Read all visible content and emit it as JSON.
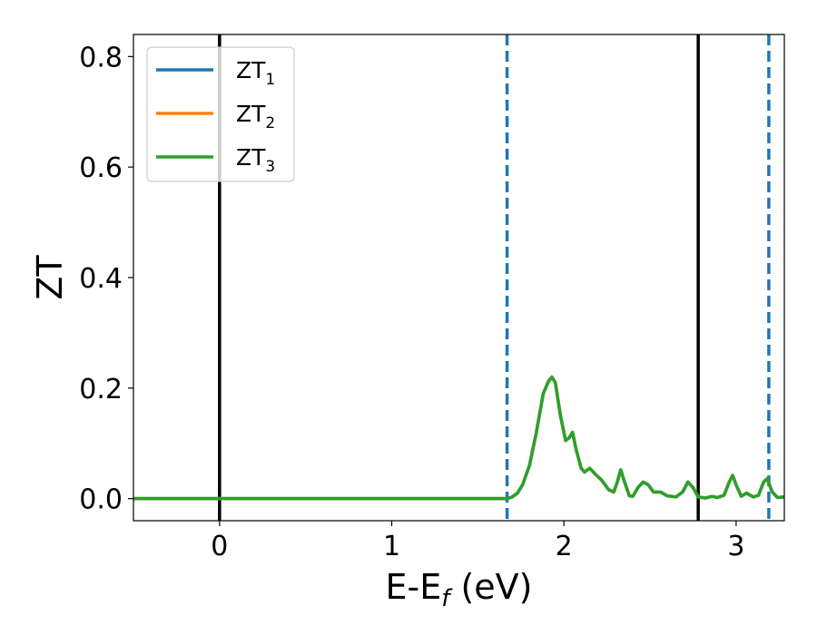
{
  "chart_data": {
    "type": "line",
    "xlabel": {
      "main": "E-E",
      "sub": "f",
      "suffix": " (eV)"
    },
    "ylabel": "ZT",
    "xlim": [
      -0.5,
      3.28
    ],
    "ylim": [
      -0.04,
      0.84
    ],
    "xticks": [
      0,
      1,
      2,
      3
    ],
    "xtick_labels": [
      "0",
      "1",
      "2",
      "3"
    ],
    "yticks": [
      0.0,
      0.2,
      0.4,
      0.6,
      0.8
    ],
    "ytick_labels": [
      "0.0",
      "0.2",
      "0.4",
      "0.6",
      "0.8"
    ],
    "grid": false,
    "legend": {
      "placement": "top-left",
      "entries": [
        {
          "main": "ZT",
          "sub": "1",
          "color": "#1f77b4"
        },
        {
          "main": "ZT",
          "sub": "2",
          "color": "#ff7f0e"
        },
        {
          "main": "ZT",
          "sub": "3",
          "color": "#2ca02c"
        }
      ]
    },
    "vlines": [
      {
        "x": 0.0,
        "style": "solid",
        "color": "#000000"
      },
      {
        "x": 2.78,
        "style": "solid",
        "color": "#000000"
      },
      {
        "x": 1.67,
        "style": "dashed",
        "color": "#1f77b4"
      },
      {
        "x": 3.19,
        "style": "dashed",
        "color": "#1f77b4"
      }
    ],
    "series": [
      {
        "name": "ZT1",
        "color": "#1f77b4",
        "points": [
          [
            -0.5,
            0
          ],
          [
            0.0,
            0
          ],
          [
            0.5,
            0
          ],
          [
            1.0,
            0
          ],
          [
            1.5,
            0
          ],
          [
            1.62,
            0
          ],
          [
            1.67,
            0
          ],
          [
            1.7,
            0.003
          ],
          [
            1.73,
            0.01
          ],
          [
            1.76,
            0.025
          ],
          [
            1.8,
            0.06
          ],
          [
            1.84,
            0.12
          ],
          [
            1.88,
            0.19
          ],
          [
            1.91,
            0.212
          ],
          [
            1.93,
            0.22
          ],
          [
            1.95,
            0.21
          ],
          [
            1.98,
            0.15
          ],
          [
            2.01,
            0.105
          ],
          [
            2.03,
            0.11
          ],
          [
            2.05,
            0.12
          ],
          [
            2.07,
            0.09
          ],
          [
            2.1,
            0.055
          ],
          [
            2.12,
            0.048
          ],
          [
            2.15,
            0.055
          ],
          [
            2.18,
            0.045
          ],
          [
            2.22,
            0.033
          ],
          [
            2.26,
            0.016
          ],
          [
            2.29,
            0.012
          ],
          [
            2.31,
            0.03
          ],
          [
            2.33,
            0.052
          ],
          [
            2.35,
            0.032
          ],
          [
            2.38,
            0.005
          ],
          [
            2.4,
            0.004
          ],
          [
            2.43,
            0.02
          ],
          [
            2.46,
            0.03
          ],
          [
            2.49,
            0.025
          ],
          [
            2.52,
            0.012
          ],
          [
            2.56,
            0.012
          ],
          [
            2.6,
            0.005
          ],
          [
            2.65,
            0.003
          ],
          [
            2.69,
            0.012
          ],
          [
            2.72,
            0.03
          ],
          [
            2.75,
            0.02
          ],
          [
            2.78,
            0.003
          ],
          [
            2.82,
            0.001
          ],
          [
            2.86,
            0.004
          ],
          [
            2.89,
            0.002
          ],
          [
            2.93,
            0.006
          ],
          [
            2.96,
            0.03
          ],
          [
            2.98,
            0.042
          ],
          [
            3.0,
            0.025
          ],
          [
            3.03,
            0.004
          ],
          [
            3.06,
            0.01
          ],
          [
            3.1,
            0.003
          ],
          [
            3.13,
            0.006
          ],
          [
            3.16,
            0.03
          ],
          [
            3.18,
            0.036
          ],
          [
            3.21,
            0.012
          ],
          [
            3.24,
            0.002
          ],
          [
            3.28,
            0.003
          ]
        ]
      },
      {
        "name": "ZT2",
        "color": "#ff7f0e",
        "points": [
          [
            -0.5,
            0
          ],
          [
            0.0,
            0
          ],
          [
            0.5,
            0
          ],
          [
            1.0,
            0
          ],
          [
            1.5,
            0
          ],
          [
            1.62,
            0
          ],
          [
            1.67,
            0
          ],
          [
            1.7,
            0.003
          ],
          [
            1.73,
            0.01
          ],
          [
            1.76,
            0.025
          ],
          [
            1.8,
            0.06
          ],
          [
            1.84,
            0.12
          ],
          [
            1.88,
            0.19
          ],
          [
            1.91,
            0.212
          ],
          [
            1.93,
            0.22
          ],
          [
            1.95,
            0.21
          ],
          [
            1.98,
            0.15
          ],
          [
            2.01,
            0.105
          ],
          [
            2.03,
            0.11
          ],
          [
            2.05,
            0.12
          ],
          [
            2.07,
            0.09
          ],
          [
            2.1,
            0.055
          ],
          [
            2.12,
            0.048
          ],
          [
            2.15,
            0.055
          ],
          [
            2.18,
            0.045
          ],
          [
            2.22,
            0.033
          ],
          [
            2.26,
            0.016
          ],
          [
            2.29,
            0.012
          ],
          [
            2.31,
            0.03
          ],
          [
            2.33,
            0.052
          ],
          [
            2.35,
            0.032
          ],
          [
            2.38,
            0.005
          ],
          [
            2.4,
            0.004
          ],
          [
            2.43,
            0.02
          ],
          [
            2.46,
            0.03
          ],
          [
            2.49,
            0.025
          ],
          [
            2.52,
            0.012
          ],
          [
            2.56,
            0.012
          ],
          [
            2.6,
            0.005
          ],
          [
            2.65,
            0.003
          ],
          [
            2.69,
            0.012
          ],
          [
            2.72,
            0.03
          ],
          [
            2.75,
            0.02
          ],
          [
            2.78,
            0.003
          ],
          [
            2.82,
            0.001
          ],
          [
            2.86,
            0.004
          ],
          [
            2.89,
            0.002
          ],
          [
            2.93,
            0.006
          ],
          [
            2.96,
            0.03
          ],
          [
            2.98,
            0.042
          ],
          [
            3.0,
            0.025
          ],
          [
            3.03,
            0.004
          ],
          [
            3.06,
            0.01
          ],
          [
            3.1,
            0.003
          ],
          [
            3.13,
            0.006
          ],
          [
            3.16,
            0.03
          ],
          [
            3.18,
            0.036
          ],
          [
            3.21,
            0.012
          ],
          [
            3.24,
            0.002
          ],
          [
            3.28,
            0.003
          ]
        ]
      },
      {
        "name": "ZT3",
        "color": "#2ca02c",
        "points": [
          [
            -0.5,
            0
          ],
          [
            0.0,
            0
          ],
          [
            0.5,
            0
          ],
          [
            1.0,
            0
          ],
          [
            1.5,
            0
          ],
          [
            1.62,
            0
          ],
          [
            1.67,
            0
          ],
          [
            1.7,
            0.003
          ],
          [
            1.73,
            0.01
          ],
          [
            1.76,
            0.025
          ],
          [
            1.8,
            0.06
          ],
          [
            1.84,
            0.12
          ],
          [
            1.88,
            0.19
          ],
          [
            1.91,
            0.212
          ],
          [
            1.93,
            0.22
          ],
          [
            1.95,
            0.21
          ],
          [
            1.98,
            0.15
          ],
          [
            2.01,
            0.105
          ],
          [
            2.03,
            0.11
          ],
          [
            2.05,
            0.12
          ],
          [
            2.07,
            0.09
          ],
          [
            2.1,
            0.055
          ],
          [
            2.12,
            0.048
          ],
          [
            2.15,
            0.055
          ],
          [
            2.18,
            0.045
          ],
          [
            2.22,
            0.033
          ],
          [
            2.26,
            0.016
          ],
          [
            2.29,
            0.012
          ],
          [
            2.31,
            0.03
          ],
          [
            2.33,
            0.052
          ],
          [
            2.35,
            0.032
          ],
          [
            2.38,
            0.005
          ],
          [
            2.4,
            0.004
          ],
          [
            2.43,
            0.02
          ],
          [
            2.46,
            0.03
          ],
          [
            2.49,
            0.025
          ],
          [
            2.52,
            0.012
          ],
          [
            2.56,
            0.012
          ],
          [
            2.6,
            0.005
          ],
          [
            2.65,
            0.003
          ],
          [
            2.69,
            0.012
          ],
          [
            2.72,
            0.03
          ],
          [
            2.75,
            0.02
          ],
          [
            2.78,
            0.003
          ],
          [
            2.82,
            0.001
          ],
          [
            2.86,
            0.004
          ],
          [
            2.89,
            0.002
          ],
          [
            2.93,
            0.006
          ],
          [
            2.96,
            0.03
          ],
          [
            2.98,
            0.042
          ],
          [
            3.0,
            0.025
          ],
          [
            3.03,
            0.004
          ],
          [
            3.06,
            0.01
          ],
          [
            3.1,
            0.003
          ],
          [
            3.13,
            0.006
          ],
          [
            3.16,
            0.03
          ],
          [
            3.18,
            0.036
          ],
          [
            3.21,
            0.012
          ],
          [
            3.24,
            0.002
          ],
          [
            3.28,
            0.003
          ]
        ]
      }
    ]
  }
}
